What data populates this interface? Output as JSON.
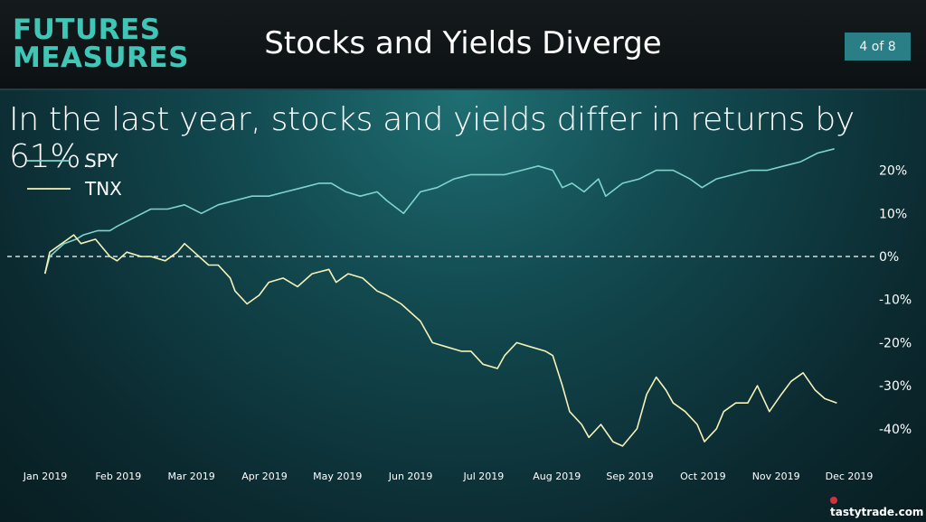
{
  "header": {
    "logo_line1": "FUTURES",
    "logo_line2": "MEASURES",
    "title": "Stocks and Yields Diverge",
    "slide_badge": "4 of 8"
  },
  "subtitle": "In the last year, stocks and yields differ in returns by 61%.",
  "branding": {
    "text": "tastytrade.com",
    "icon": "cherry-icon"
  },
  "colors": {
    "background": "#0b2a30",
    "spy": "#7fd4cc",
    "tnx": "#f5f2b8",
    "logo": "#3fc6b6",
    "badge": "#2a7f86"
  },
  "chart_data": {
    "type": "line",
    "title": "",
    "xlabel": "",
    "ylabel": "",
    "x_ticks": [
      "Jan 2019",
      "Feb 2019",
      "Mar 2019",
      "Apr 2019",
      "May 2019",
      "Jun 2019",
      "Jul 2019",
      "Aug 2019",
      "Sep 2019",
      "Oct 2019",
      "Nov 2019",
      "Dec 2019"
    ],
    "y_ticks": [
      "20%",
      "10%",
      "0%",
      "-10%",
      "-20%",
      "-30%",
      "-40%"
    ],
    "y_tick_values": [
      20,
      10,
      0,
      -10,
      -20,
      -30,
      -40
    ],
    "ylim": [
      -46,
      27
    ],
    "zero_line": "dashed",
    "grid": false,
    "legend_position": "top-left",
    "series": [
      {
        "name": "SPY",
        "x": [
          "2019-01-02",
          "2019-01-04",
          "2019-01-08",
          "2019-01-10",
          "2019-01-15",
          "2019-01-18",
          "2019-01-24",
          "2019-01-29",
          "2019-02-01",
          "2019-02-08",
          "2019-02-15",
          "2019-02-22",
          "2019-03-01",
          "2019-03-08",
          "2019-03-15",
          "2019-03-22",
          "2019-03-29",
          "2019-04-05",
          "2019-04-12",
          "2019-04-19",
          "2019-04-26",
          "2019-05-01",
          "2019-05-07",
          "2019-05-13",
          "2019-05-20",
          "2019-05-24",
          "2019-05-31",
          "2019-06-07",
          "2019-06-14",
          "2019-06-21",
          "2019-06-28",
          "2019-07-05",
          "2019-07-12",
          "2019-07-19",
          "2019-07-26",
          "2019-08-01",
          "2019-08-05",
          "2019-08-09",
          "2019-08-14",
          "2019-08-20",
          "2019-08-23",
          "2019-08-30",
          "2019-09-06",
          "2019-09-13",
          "2019-09-20",
          "2019-09-27",
          "2019-10-02",
          "2019-10-08",
          "2019-10-15",
          "2019-10-22",
          "2019-10-29",
          "2019-11-05",
          "2019-11-12",
          "2019-11-19",
          "2019-11-26"
        ],
        "values": [
          -4,
          0,
          2,
          3,
          4,
          5,
          6,
          6,
          7,
          9,
          11,
          11,
          12,
          10,
          12,
          13,
          14,
          14,
          15,
          16,
          17,
          17,
          15,
          14,
          15,
          13,
          10,
          15,
          16,
          18,
          19,
          19,
          19,
          20,
          21,
          20,
          16,
          17,
          15,
          18,
          14,
          17,
          18,
          20,
          20,
          18,
          16,
          18,
          19,
          20,
          20,
          21,
          22,
          24,
          25
        ]
      },
      {
        "name": "TNX",
        "x": [
          "2019-01-02",
          "2019-01-04",
          "2019-01-09",
          "2019-01-14",
          "2019-01-17",
          "2019-01-23",
          "2019-01-29",
          "2019-02-01",
          "2019-02-05",
          "2019-02-11",
          "2019-02-15",
          "2019-02-21",
          "2019-02-26",
          "2019-03-01",
          "2019-03-05",
          "2019-03-11",
          "2019-03-15",
          "2019-03-20",
          "2019-03-22",
          "2019-03-27",
          "2019-04-01",
          "2019-04-05",
          "2019-04-11",
          "2019-04-17",
          "2019-04-23",
          "2019-04-30",
          "2019-05-03",
          "2019-05-08",
          "2019-05-14",
          "2019-05-20",
          "2019-05-24",
          "2019-05-30",
          "2019-06-03",
          "2019-06-07",
          "2019-06-12",
          "2019-06-18",
          "2019-06-24",
          "2019-06-28",
          "2019-07-03",
          "2019-07-09",
          "2019-07-12",
          "2019-07-17",
          "2019-07-23",
          "2019-07-29",
          "2019-08-01",
          "2019-08-05",
          "2019-08-08",
          "2019-08-13",
          "2019-08-16",
          "2019-08-21",
          "2019-08-26",
          "2019-08-30",
          "2019-09-05",
          "2019-09-09",
          "2019-09-13",
          "2019-09-17",
          "2019-09-20",
          "2019-09-25",
          "2019-09-30",
          "2019-10-03",
          "2019-10-08",
          "2019-10-11",
          "2019-10-16",
          "2019-10-21",
          "2019-10-25",
          "2019-10-30",
          "2019-11-04",
          "2019-11-08",
          "2019-11-13",
          "2019-11-18",
          "2019-11-22",
          "2019-11-27"
        ],
        "values": [
          -4,
          1,
          3,
          5,
          3,
          4,
          0,
          -1,
          1,
          0,
          0,
          -1,
          1,
          3,
          1,
          -2,
          -2,
          -5,
          -8,
          -11,
          -9,
          -6,
          -5,
          -7,
          -4,
          -3,
          -6,
          -4,
          -5,
          -8,
          -9,
          -11,
          -13,
          -15,
          -20,
          -21,
          -22,
          -22,
          -25,
          -26,
          -23,
          -20,
          -21,
          -22,
          -23,
          -30,
          -36,
          -39,
          -42,
          -39,
          -43,
          -44,
          -40,
          -32,
          -28,
          -31,
          -34,
          -36,
          -39,
          -43,
          -40,
          -36,
          -34,
          -34,
          -30,
          -36,
          -32,
          -29,
          -27,
          -31,
          -33,
          -34
        ]
      }
    ]
  }
}
